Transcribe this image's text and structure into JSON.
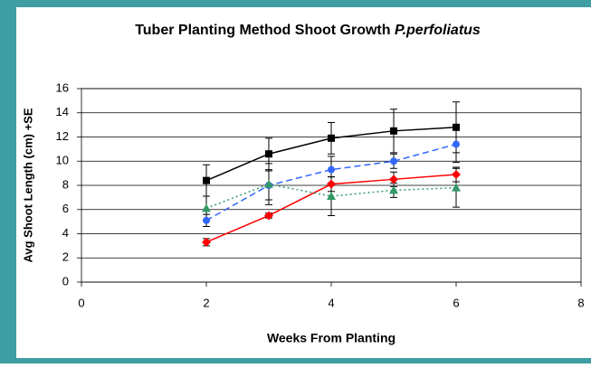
{
  "chart_data": {
    "type": "line",
    "title": [
      "Tuber Planting Method Shoot Growth ",
      "P.perfoliatus"
    ],
    "xlabel": "Weeks From Planting",
    "ylabel": "Avg Shoot Length (cm) +SE",
    "x": [
      2,
      3,
      4,
      5,
      6
    ],
    "xlim": [
      0,
      8
    ],
    "xticks": [
      0,
      2,
      4,
      6,
      8
    ],
    "ylim": [
      0,
      16
    ],
    "yticks": [
      0,
      2,
      4,
      6,
      8,
      10,
      12,
      14,
      16
    ],
    "grid": true,
    "series": [
      {
        "color": "#000000",
        "marker": "square",
        "dash": "solid",
        "values": [
          8.4,
          10.6,
          11.9,
          12.5,
          12.8
        ],
        "errors": [
          1.3,
          1.3,
          1.3,
          1.8,
          2.1
        ]
      },
      {
        "color": "#3366ff",
        "marker": "circle",
        "dash": "dashed",
        "values": [
          5.1,
          8.0,
          9.3,
          10.0,
          11.4
        ],
        "errors": [
          0.5,
          1.2,
          1.1,
          0.6,
          1.5
        ]
      },
      {
        "color": "#ff0000",
        "marker": "diamond",
        "dash": "solid",
        "values": [
          3.3,
          5.5,
          8.1,
          8.5,
          8.9
        ],
        "errors": [
          0.3,
          0.2,
          0.6,
          0.6,
          0.6
        ]
      },
      {
        "color": "#339966",
        "marker": "triangle",
        "dash": "dotted",
        "values": [
          6.1,
          8.1,
          7.1,
          7.6,
          7.8
        ],
        "errors": [
          1.0,
          1.7,
          1.6,
          0.6,
          1.6
        ]
      }
    ]
  }
}
